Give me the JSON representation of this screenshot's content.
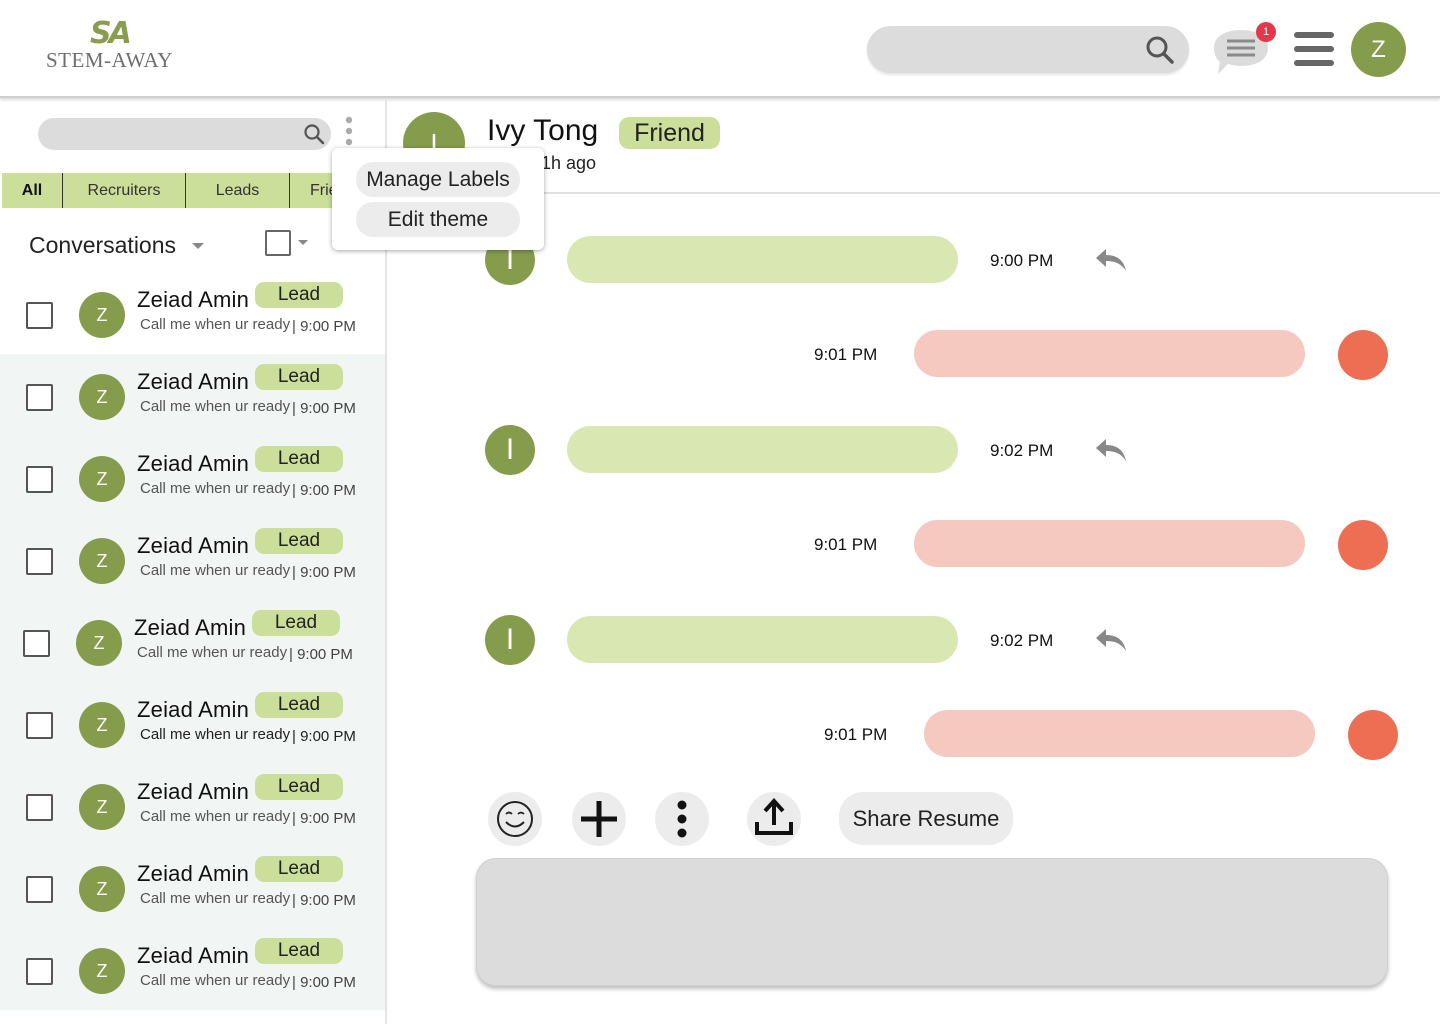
{
  "header": {
    "logo_mark": "SA",
    "logo_text": "STEM-AWAY",
    "notification_count": "1",
    "user_initial": "Z"
  },
  "sidebar": {
    "tabs": [
      {
        "label": "All"
      },
      {
        "label": "Recruiters"
      },
      {
        "label": "Leads"
      },
      {
        "label": "Friends"
      }
    ],
    "conversations_title": "Conversations",
    "conversations": [
      {
        "initial": "Z",
        "name": "Zeiad Amin",
        "label": "Lead",
        "preview": "Call me when ur ready",
        "time": "| 9:00 PM"
      },
      {
        "initial": "Z",
        "name": "Zeiad Amin",
        "label": "Lead",
        "preview": "Call me when ur ready",
        "time": "| 9:00 PM"
      },
      {
        "initial": "Z",
        "name": "Zeiad Amin",
        "label": "Lead",
        "preview": "Call me when ur ready",
        "time": "| 9:00 PM"
      },
      {
        "initial": "Z",
        "name": "Zeiad Amin",
        "label": "Lead",
        "preview": "Call me when ur ready",
        "time": "| 9:00 PM"
      },
      {
        "initial": "Z",
        "name": "Zeiad Amin",
        "label": "Lead",
        "preview": "Call me when ur ready",
        "time": "| 9:00 PM"
      },
      {
        "initial": "Z",
        "name": "Zeiad Amin",
        "label": "Lead",
        "preview": "Call me when ur ready",
        "time": "| 9:00 PM"
      },
      {
        "initial": "Z",
        "name": "Zeiad Amin",
        "label": "Lead",
        "preview": "Call me when ur ready",
        "time": "| 9:00 PM"
      },
      {
        "initial": "Z",
        "name": "Zeiad Amin",
        "label": "Lead",
        "preview": "Call me when ur ready",
        "time": "| 9:00 PM"
      },
      {
        "initial": "Z",
        "name": "Zeiad Amin",
        "label": "Lead",
        "preview": "Call me when ur ready",
        "time": "| 9:00 PM"
      }
    ]
  },
  "popup_menu": {
    "items": [
      {
        "label": "Manage Labels"
      },
      {
        "label": "Edit theme"
      }
    ]
  },
  "chat": {
    "contact_initial": "I",
    "contact_name": "Ivy Tong",
    "contact_tag": "Friend",
    "status": "1h ago",
    "messages": [
      {
        "direction": "incoming",
        "sender_initial": "I",
        "time": "9:00 PM"
      },
      {
        "direction": "outgoing",
        "time": "9:01 PM"
      },
      {
        "direction": "incoming",
        "sender_initial": "I",
        "time": "9:02 PM"
      },
      {
        "direction": "outgoing",
        "time": "9:01 PM"
      },
      {
        "direction": "incoming",
        "sender_initial": "I",
        "time": "9:02 PM"
      },
      {
        "direction": "outgoing",
        "time": "9:01 PM"
      }
    ],
    "toolbar": {
      "share_resume_label": "Share Resume"
    }
  },
  "colors": {
    "brand_green": "#869c4d",
    "label_green": "#cbdf9a",
    "incoming_bubble": "#d9e7b3",
    "outgoing_bubble": "#f5c8c0",
    "outgoing_avatar": "#ee6e54",
    "badge_red": "#e3384a"
  }
}
